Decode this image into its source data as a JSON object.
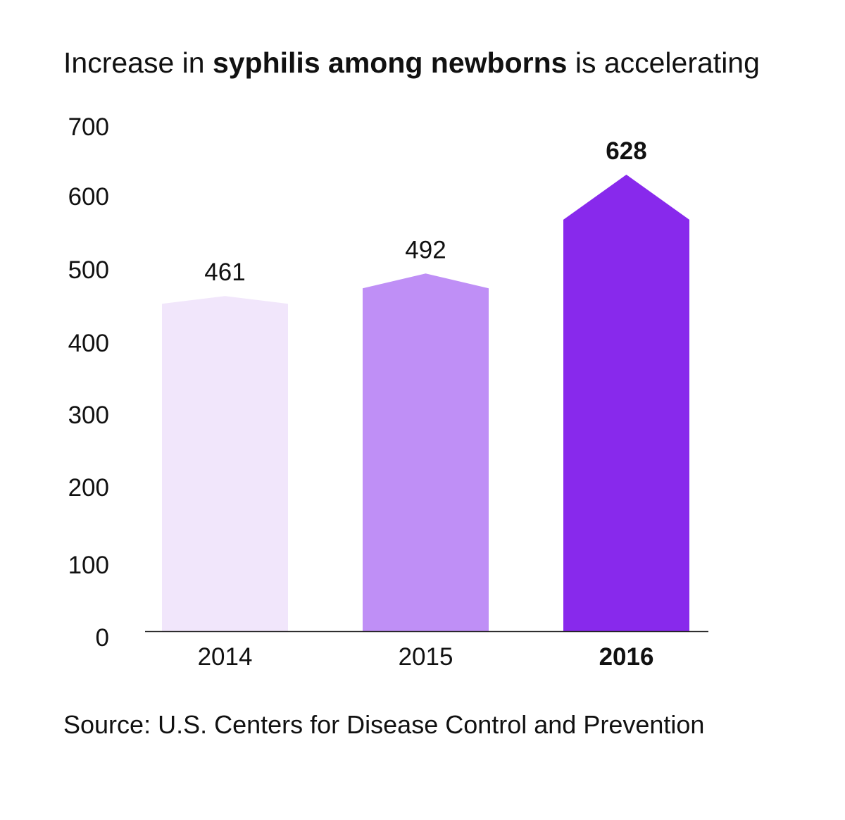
{
  "chart_data": {
    "type": "bar",
    "title": {
      "parts": [
        {
          "text": "Increase in ",
          "bold": false
        },
        {
          "text": "syphilis among newborns",
          "bold": true
        },
        {
          "text": " is accelerating",
          "bold": false
        }
      ]
    },
    "categories": [
      "2014",
      "2015",
      "2016"
    ],
    "values": [
      461,
      492,
      628
    ],
    "data_labels": [
      "461",
      "492",
      "628"
    ],
    "highlight_index": 2,
    "colors": [
      "#f1e6fb",
      "#bf8ff6",
      "#8829ec"
    ],
    "ylim": [
      0,
      700
    ],
    "yticks": [
      "0",
      "100",
      "200",
      "300",
      "400",
      "500",
      "600",
      "700"
    ],
    "xlabel": "",
    "ylabel": "",
    "grid": false,
    "bar_shape": "arrow-top",
    "source": "Source: U.S. Centers for Disease Control and Prevention"
  }
}
